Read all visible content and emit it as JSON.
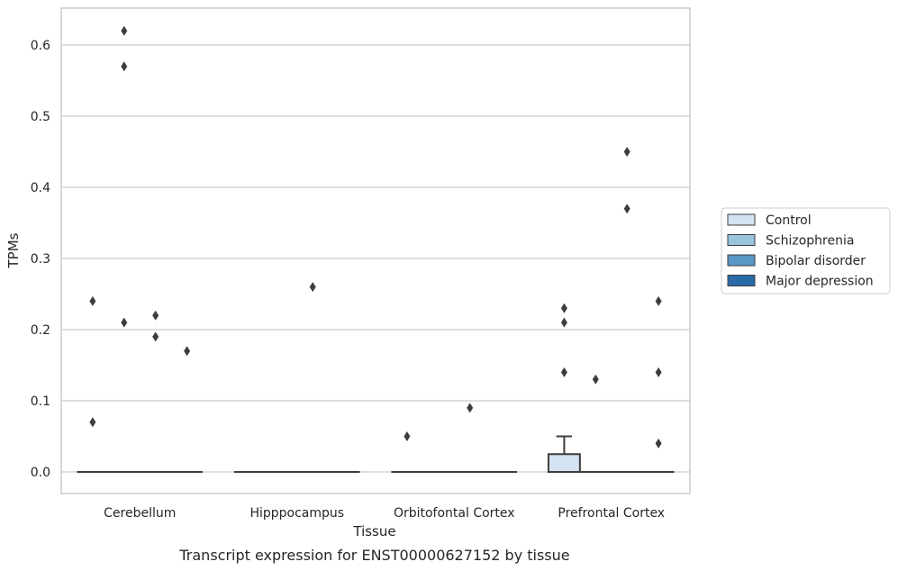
{
  "chart_data": {
    "type": "box",
    "caption": "Transcript expression for ENST00000627152 by tissue",
    "xlabel": "Tissue",
    "ylabel": "TPMs",
    "ylim": [
      -0.03,
      0.65
    ],
    "yticks": [
      "0.0",
      "0.1",
      "0.2",
      "0.3",
      "0.4",
      "0.5",
      "0.6"
    ],
    "ytick_values": [
      0.0,
      0.1,
      0.2,
      0.3,
      0.4,
      0.5,
      0.6
    ],
    "grid": "horizontal",
    "legend_position": "right",
    "categories": [
      "Cerebellum",
      "Hipppocampus",
      "Orbitofontal Cortex",
      "Prefrontal Cortex"
    ],
    "series": [
      {
        "name": "Control",
        "color": "#d3e3f2",
        "boxes": [
          {
            "q1": 0,
            "median": 0,
            "q3": 0,
            "whisker_low": 0,
            "whisker_high": 0,
            "outliers": [
              0.07,
              0.24
            ]
          },
          {
            "q1": 0,
            "median": 0,
            "q3": 0,
            "whisker_low": 0,
            "whisker_high": 0,
            "outliers": []
          },
          {
            "q1": 0,
            "median": 0,
            "q3": 0,
            "whisker_low": 0,
            "whisker_high": 0,
            "outliers": [
              0.05
            ]
          },
          {
            "q1": 0,
            "median": 0,
            "q3": 0.025,
            "whisker_low": 0,
            "whisker_high": 0.05,
            "outliers": [
              0.14,
              0.21,
              0.23
            ]
          }
        ]
      },
      {
        "name": "Schizophrenia",
        "color": "#9bc3de",
        "boxes": [
          {
            "q1": 0,
            "median": 0,
            "q3": 0,
            "whisker_low": 0,
            "whisker_high": 0,
            "outliers": [
              0.21,
              0.57,
              0.62
            ]
          },
          {
            "q1": 0,
            "median": 0,
            "q3": 0,
            "whisker_low": 0,
            "whisker_high": 0,
            "outliers": []
          },
          {
            "q1": 0,
            "median": 0,
            "q3": 0,
            "whisker_low": 0,
            "whisker_high": 0,
            "outliers": []
          },
          {
            "q1": 0,
            "median": 0,
            "q3": 0,
            "whisker_low": 0,
            "whisker_high": 0,
            "outliers": [
              0.13
            ]
          }
        ]
      },
      {
        "name": "Bipolar disorder",
        "color": "#5997c6",
        "boxes": [
          {
            "q1": 0,
            "median": 0,
            "q3": 0,
            "whisker_low": 0,
            "whisker_high": 0,
            "outliers": [
              0.19,
              0.22
            ]
          },
          {
            "q1": 0,
            "median": 0,
            "q3": 0,
            "whisker_low": 0,
            "whisker_high": 0,
            "outliers": [
              0.26
            ]
          },
          {
            "q1": 0,
            "median": 0,
            "q3": 0,
            "whisker_low": 0,
            "whisker_high": 0,
            "outliers": [
              0.09
            ]
          },
          {
            "q1": 0,
            "median": 0,
            "q3": 0,
            "whisker_low": 0,
            "whisker_high": 0,
            "outliers": [
              0.37,
              0.45
            ]
          }
        ]
      },
      {
        "name": "Major depression",
        "color": "#2a6aa8",
        "boxes": [
          {
            "q1": 0,
            "median": 0,
            "q3": 0,
            "whisker_low": 0,
            "whisker_high": 0,
            "outliers": [
              0.17
            ]
          },
          {
            "q1": 0,
            "median": 0,
            "q3": 0,
            "whisker_low": 0,
            "whisker_high": 0,
            "outliers": []
          },
          {
            "q1": 0,
            "median": 0,
            "q3": 0,
            "whisker_low": 0,
            "whisker_high": 0,
            "outliers": []
          },
          {
            "q1": 0,
            "median": 0,
            "q3": 0,
            "whisker_low": 0,
            "whisker_high": 0,
            "outliers": [
              0.04,
              0.14,
              0.24
            ]
          }
        ]
      }
    ]
  }
}
